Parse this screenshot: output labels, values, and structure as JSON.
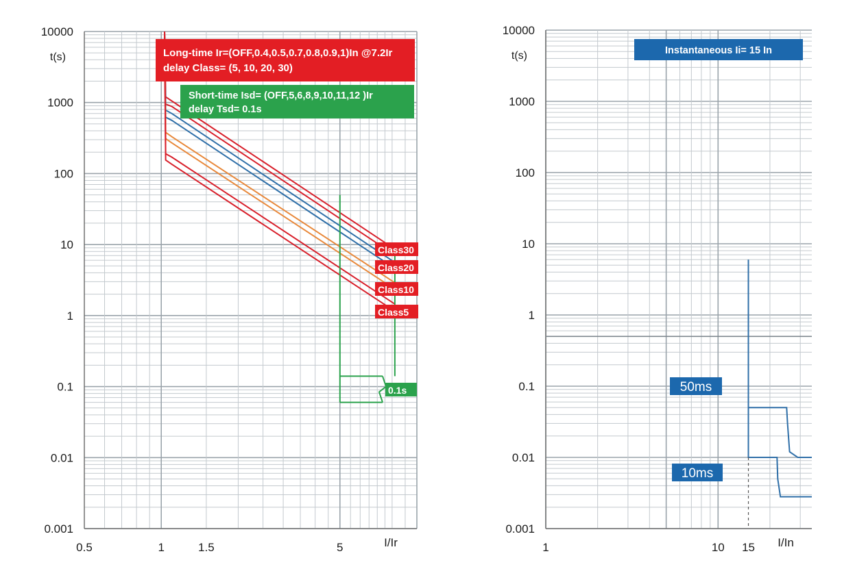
{
  "chart_data": [
    {
      "type": "line",
      "scale": {
        "x": "log",
        "y": "log"
      },
      "xlim": [
        0.5,
        10
      ],
      "ylim": [
        0.001,
        10000
      ],
      "xlabel": "I/Ir",
      "ylabel": "t(s)",
      "xticks": [
        "0.5",
        "1",
        "1.5",
        "5"
      ],
      "xtick_values": [
        0.5,
        1,
        1.5,
        5
      ],
      "yticks": [
        "0.001",
        "0.01",
        "0.1",
        "1",
        "10",
        "100",
        "1000",
        "10000"
      ],
      "ytick_values": [
        0.001,
        0.01,
        0.1,
        1,
        10,
        100,
        1000,
        10000
      ],
      "grid": true,
      "annotations": {
        "long_time": {
          "line1": "Long-time Ir=(OFF,0.4,0.5,0.7,0.8,0.9,1)In @7.2Ir",
          "line2": "delay          Class= (5, 10, 20, 30)",
          "color": "#e31e24"
        },
        "short_time": {
          "line1": "Short-time  Isd= (OFF,5,6,8,9,10,11,12 )Ir",
          "line2": "delay         Tsd= 0.1s",
          "color": "#2ba24c"
        },
        "class_labels": [
          "Class30",
          "Class20",
          "Class10",
          "Class5"
        ],
        "tsd_label": "0.1s"
      },
      "series": [
        {
          "color": "#d81f2a",
          "points": [
            [
              1.03,
              10000
            ],
            [
              1.04,
              1200
            ],
            [
              1.1,
              1050
            ],
            [
              8.2,
              8.6
            ]
          ]
        },
        {
          "color": "#d81f2a",
          "points": [
            [
              1.03,
              10000
            ],
            [
              1.04,
              950
            ],
            [
              1.1,
              880
            ],
            [
              8.2,
              7.1
            ]
          ]
        },
        {
          "color": "#2f6fa8",
          "points": [
            [
              1.03,
              10000
            ],
            [
              1.04,
              780
            ],
            [
              1.1,
              700
            ],
            [
              8.2,
              5.6
            ]
          ]
        },
        {
          "color": "#2f6fa8",
          "points": [
            [
              1.03,
              10000
            ],
            [
              1.04,
              620
            ],
            [
              1.1,
              560
            ],
            [
              8.2,
              4.6
            ]
          ]
        },
        {
          "color": "#e8883a",
          "points": [
            [
              1.03,
              10000
            ],
            [
              1.04,
              380
            ],
            [
              1.1,
              330
            ],
            [
              8.2,
              2.9
            ]
          ]
        },
        {
          "color": "#e8883a",
          "points": [
            [
              1.03,
              10000
            ],
            [
              1.04,
              310
            ],
            [
              1.1,
              270
            ],
            [
              8.2,
              2.35
            ]
          ]
        },
        {
          "color": "#d81f2a",
          "points": [
            [
              1.03,
              10000
            ],
            [
              1.04,
              190
            ],
            [
              1.1,
              170
            ],
            [
              8.2,
              1.45
            ]
          ]
        },
        {
          "color": "#d81f2a",
          "points": [
            [
              1.03,
              10000
            ],
            [
              1.04,
              155
            ],
            [
              1.1,
              135
            ],
            [
              8.2,
              1.15
            ]
          ]
        }
      ],
      "short_time_band": {
        "color": "#2ba24c",
        "x_left": 5,
        "x_right": 8.2,
        "t_upper": 0.14,
        "t_lower": 0.06,
        "pickup_top": 50,
        "right_top": 8.6
      }
    },
    {
      "type": "line",
      "scale": {
        "x": "log",
        "y": "log"
      },
      "xlim": [
        1,
        35
      ],
      "ylim": [
        0.001,
        10000
      ],
      "xlabel": "I/In",
      "ylabel": "t(s)",
      "xticks": [
        "1",
        "10",
        "15"
      ],
      "xtick_values": [
        1,
        10,
        15
      ],
      "yticks": [
        "0.001",
        "0.01",
        "0.1",
        "1",
        "10",
        "100",
        "1000",
        "10000"
      ],
      "ytick_values": [
        0.001,
        0.01,
        0.1,
        1,
        10,
        100,
        1000,
        10000
      ],
      "grid": true,
      "annotations": {
        "instantaneous": {
          "text": "Instantaneous Ii= 15 In",
          "color": "#1c68ad"
        },
        "label_50ms": "50ms",
        "label_10ms": "10ms"
      },
      "series": [
        {
          "name": "50ms",
          "color": "#2f6fa8",
          "points": [
            [
              15,
              6
            ],
            [
              15,
              0.05
            ],
            [
              25,
              0.05
            ],
            [
              25.3,
              0.03
            ],
            [
              26,
              0.012
            ],
            [
              29,
              0.01
            ],
            [
              35,
              0.01
            ]
          ]
        },
        {
          "name": "10ms",
          "color": "#2f6fa8",
          "points": [
            [
              15,
              0.05
            ],
            [
              15,
              0.01
            ],
            [
              22,
              0.01
            ],
            [
              22.2,
              0.005
            ],
            [
              23,
              0.0028
            ],
            [
              35,
              0.0028
            ]
          ]
        }
      ],
      "reference_line_t": 0.5
    }
  ]
}
